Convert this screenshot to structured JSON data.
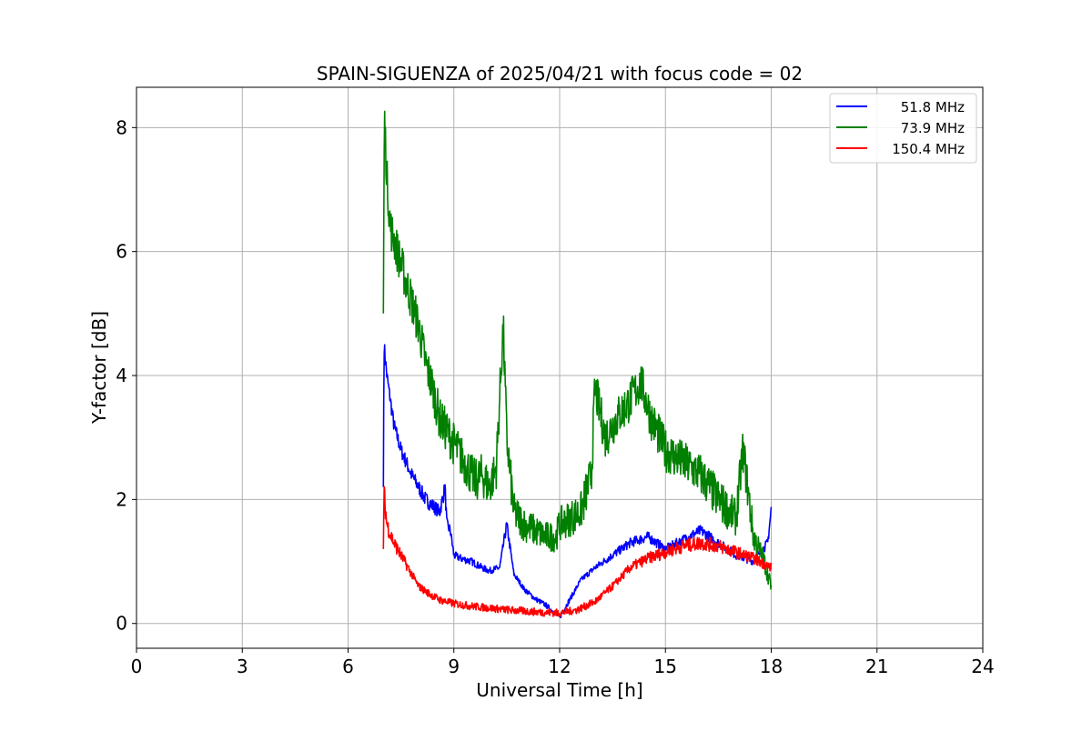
{
  "chart_data": {
    "type": "line",
    "title": "SPAIN-SIGUENZA of 2025/04/21 with focus code = 02",
    "xlabel": "Universal Time [h]",
    "ylabel": "Y-factor [dB]",
    "xlim": [
      0,
      24
    ],
    "ylim": [
      -0.4,
      8.65
    ],
    "xticks": [
      0,
      3,
      6,
      9,
      12,
      15,
      18,
      21,
      24
    ],
    "yticks": [
      0,
      2,
      4,
      6,
      8
    ],
    "grid": true,
    "legend_position": "top-right",
    "colors": {
      "s518": "#0000ff",
      "s739": "#008000",
      "s1504": "#ff0000",
      "grid": "#b0b0b0"
    },
    "series": [
      {
        "name": "51.8 MHz",
        "color": "#0000ff",
        "x": [
          7.0,
          7.02,
          7.1,
          7.3,
          7.5,
          7.8,
          8.0,
          8.2,
          8.4,
          8.6,
          8.75,
          8.8,
          8.9,
          9.0,
          9.2,
          9.5,
          9.8,
          10.0,
          10.3,
          10.5,
          10.7,
          11.0,
          11.3,
          11.6,
          11.9,
          12.0,
          12.3,
          12.6,
          13.0,
          13.5,
          14.0,
          14.5,
          15.0,
          15.5,
          16.0,
          16.5,
          17.0,
          17.5,
          17.9,
          18.0
        ],
        "y": [
          2.2,
          4.5,
          4.0,
          3.2,
          2.8,
          2.4,
          2.2,
          2.0,
          1.9,
          1.8,
          2.2,
          1.6,
          1.5,
          1.1,
          1.05,
          1.0,
          0.9,
          0.85,
          0.9,
          1.6,
          0.8,
          0.55,
          0.4,
          0.3,
          0.15,
          0.1,
          0.4,
          0.7,
          0.9,
          1.1,
          1.3,
          1.4,
          1.2,
          1.35,
          1.5,
          1.3,
          1.1,
          1.0,
          1.3,
          1.85
        ]
      },
      {
        "name": "73.9 MHz",
        "color": "#008000",
        "x": [
          7.0,
          7.03,
          7.1,
          7.2,
          7.4,
          7.6,
          7.8,
          8.0,
          8.2,
          8.4,
          8.6,
          8.8,
          9.0,
          9.2,
          9.4,
          9.6,
          9.8,
          10.0,
          10.2,
          10.4,
          10.5,
          10.7,
          11.0,
          11.3,
          11.6,
          11.9,
          12.0,
          12.3,
          12.6,
          12.9,
          13.0,
          13.3,
          13.6,
          14.0,
          14.3,
          14.6,
          15.0,
          15.5,
          16.0,
          16.5,
          17.0,
          17.2,
          17.5,
          17.8,
          18.0
        ],
        "y": [
          5.0,
          8.2,
          7.2,
          6.4,
          6.0,
          5.6,
          5.2,
          4.8,
          4.2,
          3.8,
          3.3,
          3.1,
          2.9,
          2.7,
          2.5,
          2.3,
          2.4,
          2.2,
          2.5,
          4.8,
          3.0,
          1.8,
          1.6,
          1.5,
          1.4,
          1.4,
          1.6,
          1.7,
          1.8,
          2.4,
          3.8,
          3.0,
          3.3,
          3.6,
          3.9,
          3.3,
          2.8,
          2.6,
          2.4,
          2.0,
          1.7,
          2.8,
          1.4,
          1.0,
          0.6
        ]
      },
      {
        "name": "150.4 MHz",
        "color": "#ff0000",
        "x": [
          7.0,
          7.02,
          7.1,
          7.3,
          7.5,
          7.8,
          8.0,
          8.3,
          8.6,
          9.0,
          9.5,
          10.0,
          10.5,
          11.0,
          11.5,
          12.0,
          12.5,
          13.0,
          13.5,
          14.0,
          14.5,
          15.0,
          15.5,
          16.0,
          16.5,
          17.0,
          17.5,
          18.0
        ],
        "y": [
          1.2,
          2.1,
          1.6,
          1.3,
          1.1,
          0.8,
          0.6,
          0.48,
          0.38,
          0.32,
          0.28,
          0.25,
          0.22,
          0.2,
          0.18,
          0.17,
          0.22,
          0.35,
          0.6,
          0.9,
          1.05,
          1.15,
          1.25,
          1.3,
          1.25,
          1.15,
          1.05,
          0.9
        ]
      }
    ]
  }
}
